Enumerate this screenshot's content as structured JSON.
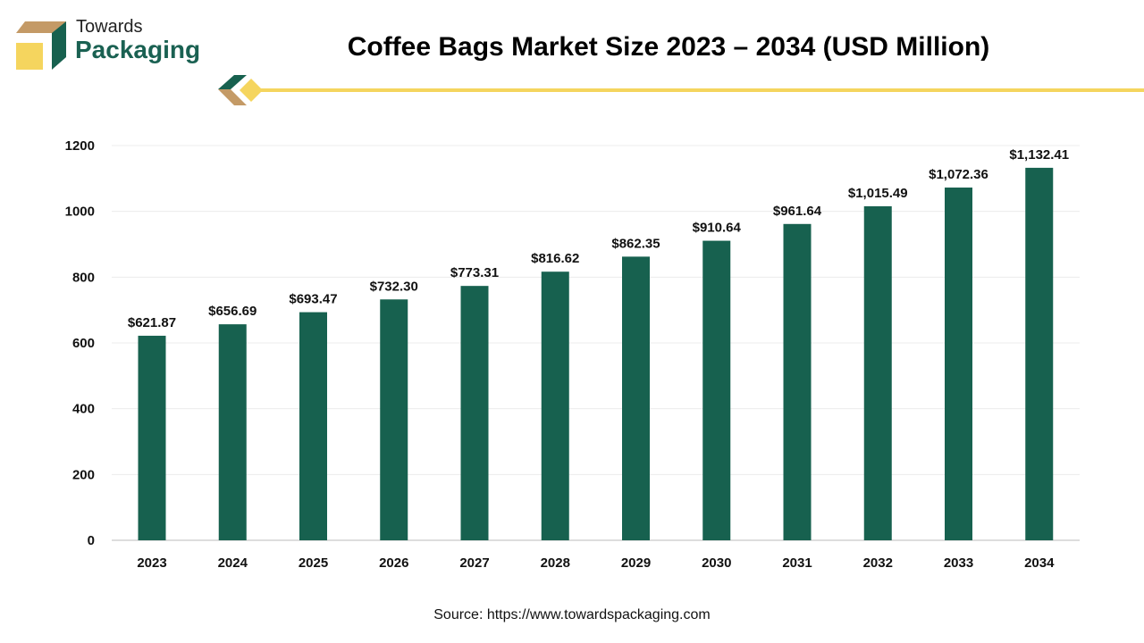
{
  "logo": {
    "line1": "Towards",
    "line2": "Packaging"
  },
  "title": "Coffee Bags Market Size 2023 – 2034 (USD Million)",
  "source": "Source: https://www.towardspackaging.com",
  "colors": {
    "bar": "#17614f",
    "accent_yellow": "#f5d55e",
    "accent_tan": "#c49a66"
  },
  "chart_data": {
    "type": "bar",
    "title": "Coffee Bags Market Size 2023 – 2034 (USD Million)",
    "categories": [
      "2023",
      "2024",
      "2025",
      "2026",
      "2027",
      "2028",
      "2029",
      "2030",
      "2031",
      "2032",
      "2033",
      "2034"
    ],
    "values": [
      621.87,
      656.69,
      693.47,
      732.3,
      773.31,
      816.62,
      862.35,
      910.64,
      961.64,
      1015.49,
      1072.36,
      1132.41
    ],
    "data_labels": [
      "$621.87",
      "$656.69",
      "$693.47",
      "$732.30",
      "$773.31",
      "$816.62",
      "$862.35",
      "$910.64",
      "$961.64",
      "$1,015.49",
      "$1,072.36",
      "$1,132.41"
    ],
    "yticks": [
      "0",
      "200",
      "400",
      "600",
      "800",
      "1000",
      "1200"
    ],
    "ylim": [
      0,
      1200
    ],
    "grid": true,
    "xlabel": "",
    "ylabel": ""
  }
}
